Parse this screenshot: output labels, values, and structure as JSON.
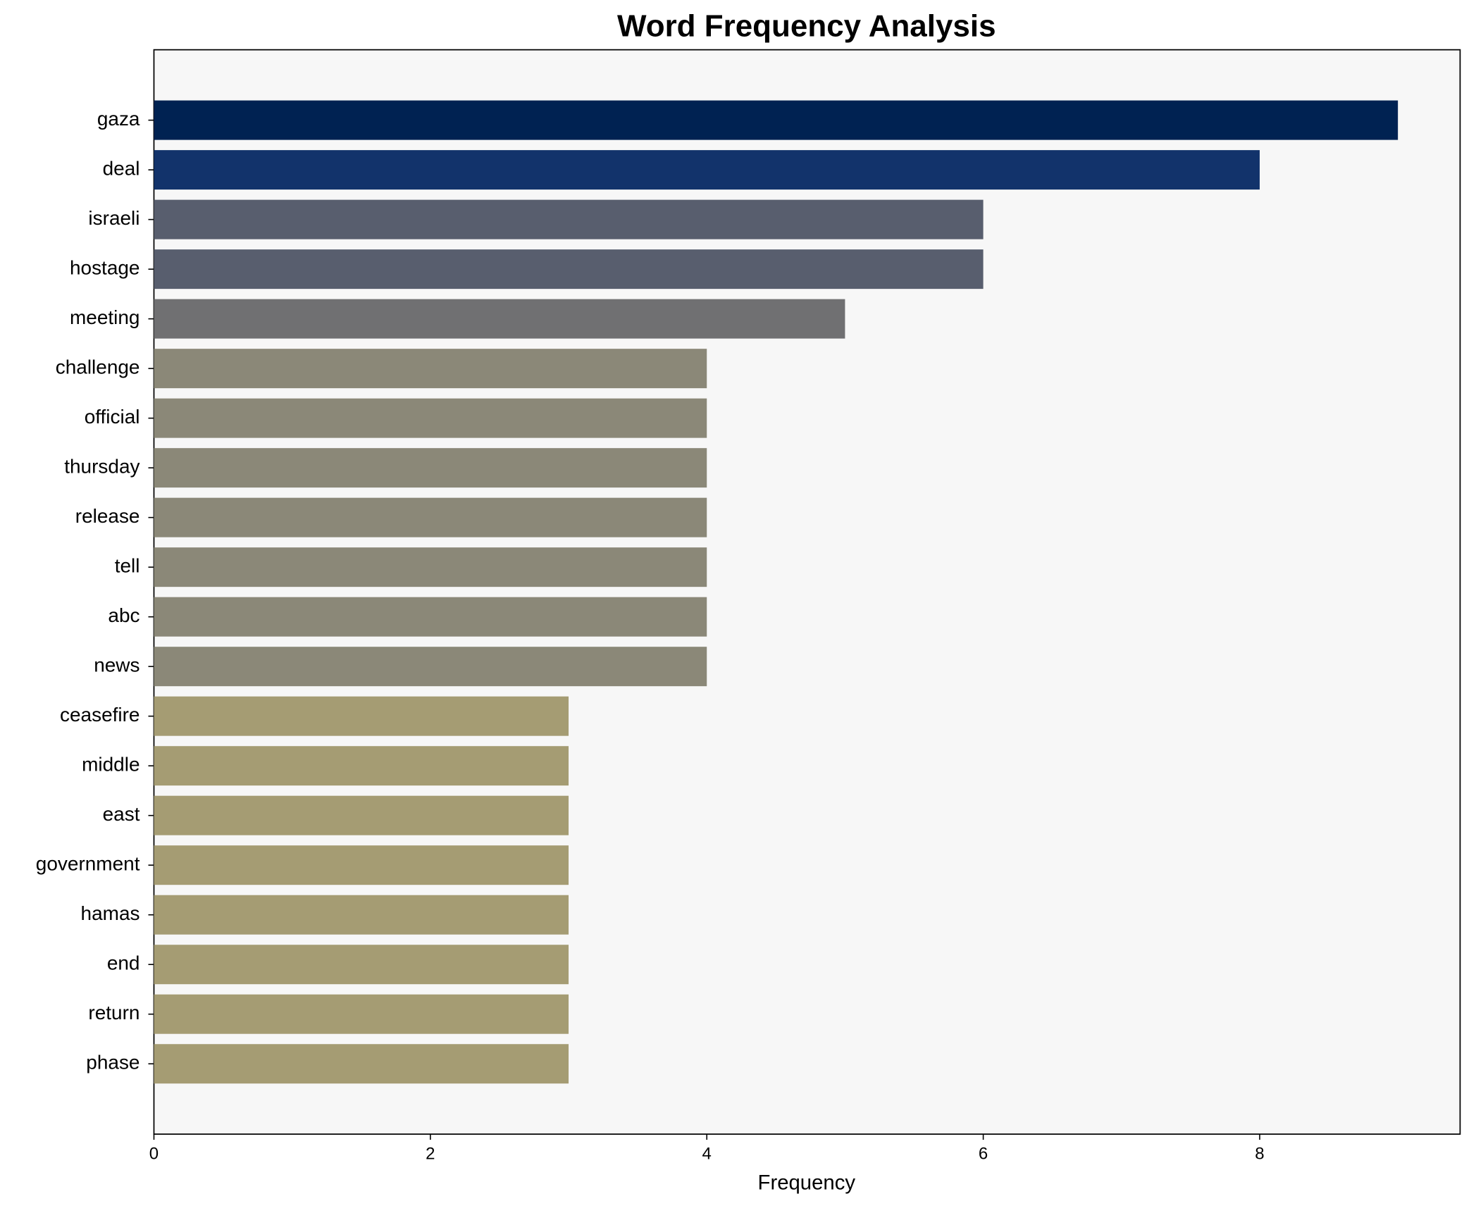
{
  "chart_data": {
    "type": "barh",
    "title": "Word Frequency Analysis",
    "x_label": "Frequency",
    "categories": [
      "gaza",
      "deal",
      "israeli",
      "hostage",
      "meeting",
      "challenge",
      "official",
      "thursday",
      "release",
      "tell",
      "abc",
      "news",
      "ceasefire",
      "middle",
      "east",
      "government",
      "hamas",
      "end",
      "return",
      "phase"
    ],
    "values": [
      9,
      8,
      6,
      6,
      5,
      4,
      4,
      4,
      4,
      4,
      4,
      4,
      3,
      3,
      3,
      3,
      3,
      3,
      3,
      3
    ],
    "colors": [
      "#002252",
      "#12336b",
      "#585e6e",
      "#585e6e",
      "#707072",
      "#8b8878",
      "#8b8878",
      "#8b8878",
      "#8b8878",
      "#8b8878",
      "#8b8878",
      "#8b8878",
      "#a59c73",
      "#a59c73",
      "#a59c73",
      "#a59c73",
      "#a59c73",
      "#a59c73",
      "#a59c73",
      "#a59c73"
    ],
    "xlim": [
      0,
      9.45
    ],
    "xticks": [
      0,
      2,
      4,
      6,
      8
    ],
    "background": "#f7f7f7"
  }
}
